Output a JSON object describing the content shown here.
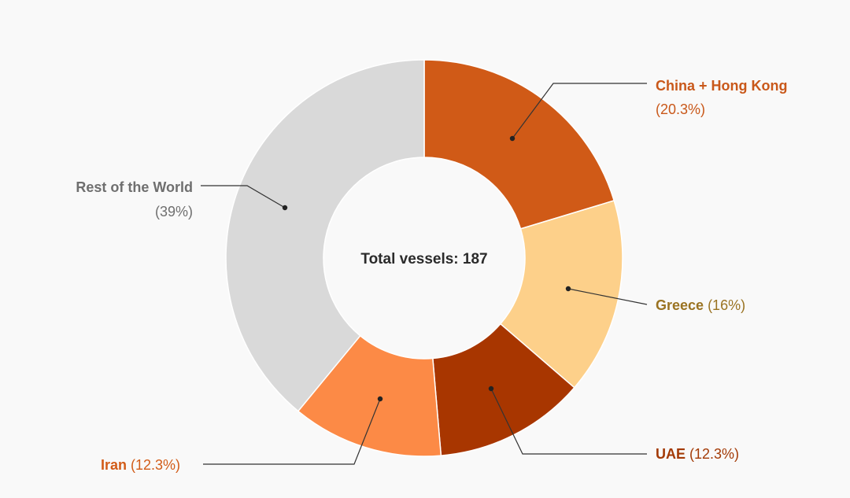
{
  "chart_data": {
    "type": "pie",
    "variant": "donut",
    "center_label": "Total vessels: 187",
    "slices": [
      {
        "name": "China + Hong Kong",
        "percent_label": "(20.3%)",
        "value": 20.3,
        "color": "#d05a17",
        "label_color": "#c9581a",
        "label_layout": "stacked"
      },
      {
        "name": "Greece",
        "percent_label": "(16%)",
        "value": 16.0,
        "color": "#fdd08a",
        "label_color": "#9a7322",
        "label_layout": "inline"
      },
      {
        "name": "UAE",
        "percent_label": "(12.3%)",
        "value": 12.3,
        "color": "#a83600",
        "label_color": "#a33a06",
        "label_layout": "inline"
      },
      {
        "name": "Iran",
        "percent_label": "(12.3%)",
        "value": 12.3,
        "color": "#fc8a46",
        "label_color": "#d25c18",
        "label_layout": "inline"
      },
      {
        "name": "Rest of the World",
        "percent_label": "(39%)",
        "value": 39.0,
        "color": "#d9d9d9",
        "label_color": "#6f6f6f",
        "label_layout": "stacked"
      }
    ]
  }
}
